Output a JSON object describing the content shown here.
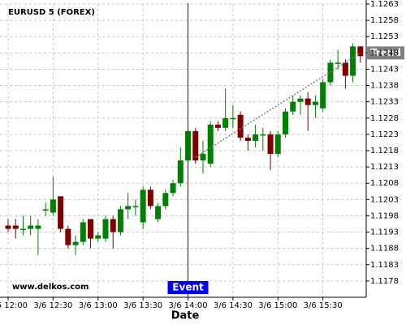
{
  "chart_data": {
    "type": "candlestick",
    "title": "EURUSD 5 (FOREX)",
    "watermark": "www.delkos.com",
    "x_label": "Date",
    "categories": [
      "3/6 12:00",
      null,
      null,
      null,
      null,
      null,
      "3/6 12:30",
      null,
      null,
      null,
      null,
      null,
      "3/6 13:00",
      null,
      null,
      null,
      null,
      null,
      "3/6 13:30",
      null,
      null,
      null,
      null,
      null,
      "3/6 14:00",
      null,
      null,
      null,
      null,
      null,
      "3/6 14:30",
      null,
      null,
      null,
      null,
      null,
      "3/6 15:00",
      null,
      null,
      null,
      null,
      null,
      "3/6 15:30",
      null,
      null,
      null,
      null,
      null
    ],
    "open": [
      1.1195,
      1.1195,
      1.1194,
      1.1194,
      1.1194,
      1.12,
      1.1199,
      1.1204,
      1.1194,
      1.1189,
      1.119,
      1.1197,
      1.1191,
      1.1191,
      1.1197,
      1.1193,
      1.12,
      1.1201,
      1.1196,
      1.1206,
      1.1197,
      1.1201,
      1.1205,
      1.1208,
      1.1215,
      1.1224,
      1.1215,
      1.1214,
      1.1226,
      1.1225,
      1.1228,
      1.1229,
      1.1222,
      1.1221,
      1.1223,
      1.1223,
      1.1217,
      1.1223,
      1.123,
      1.1233,
      1.1234,
      1.1232,
      1.1231,
      1.1239,
      1.1245,
      1.1245,
      1.1241,
      1.125
    ],
    "high": [
      1.1197,
      1.1197,
      1.1198,
      1.1198,
      1.1197,
      1.1202,
      1.121,
      1.1204,
      1.1195,
      1.1192,
      1.1197,
      1.1197,
      1.1193,
      1.1198,
      1.1198,
      1.1201,
      1.1205,
      1.1203,
      1.1207,
      1.1207,
      1.1202,
      1.1206,
      1.1209,
      1.1219,
      1.1225,
      1.1225,
      1.1221,
      1.1227,
      1.1227,
      1.1237,
      1.1232,
      1.123,
      1.1223,
      1.1226,
      1.1225,
      1.1224,
      1.1224,
      1.1231,
      1.1235,
      1.1235,
      1.1236,
      1.1235,
      1.124,
      1.1246,
      1.1249,
      1.1246,
      1.1251,
      1.125
    ],
    "low": [
      1.1193,
      1.1191,
      1.1192,
      1.1192,
      1.1186,
      1.1198,
      1.1198,
      1.1193,
      1.1188,
      1.1186,
      1.1189,
      1.1188,
      1.119,
      1.119,
      1.1188,
      1.1192,
      1.1197,
      1.1198,
      1.1194,
      1.12,
      1.1196,
      1.12,
      1.1204,
      1.1207,
      1.1214,
      1.1214,
      1.1211,
      1.1213,
      1.1224,
      1.1224,
      1.1225,
      1.1221,
      1.1218,
      1.1219,
      1.1218,
      1.1212,
      1.1216,
      1.1222,
      1.1229,
      1.1229,
      1.1224,
      1.1228,
      1.123,
      1.1238,
      1.1243,
      1.1237,
      1.1239,
      1.1245
    ],
    "close": [
      1.1194,
      1.1194,
      1.1194,
      1.1195,
      1.1195,
      1.12,
      1.1203,
      1.1194,
      1.1189,
      1.119,
      1.1196,
      1.1191,
      1.1192,
      1.1197,
      1.1193,
      1.12,
      1.1201,
      1.1201,
      1.1206,
      1.1201,
      1.1201,
      1.1205,
      1.1208,
      1.1215,
      1.1224,
      1.1215,
      1.1217,
      1.1226,
      1.1225,
      1.1228,
      1.1228,
      1.1222,
      1.1221,
      1.1223,
      1.1223,
      1.1217,
      1.1223,
      1.123,
      1.1233,
      1.1234,
      1.1232,
      1.1233,
      1.1239,
      1.1245,
      1.1245,
      1.1241,
      1.125,
      1.1247
    ],
    "up_color": "#008000",
    "down_color": "#800000",
    "ylim": [
      1.1173,
      1.1263
    ],
    "yticks": [
      1.1178,
      1.1183,
      1.1188,
      1.1193,
      1.1198,
      1.1203,
      1.1208,
      1.1213,
      1.1218,
      1.1223,
      1.1228,
      1.1233,
      1.1238,
      1.1243,
      1.1248,
      1.1253,
      1.1258,
      1.1263
    ],
    "grid": true,
    "event": {
      "label": "Event",
      "x": 24,
      "color": "#0000ff"
    },
    "trend": {
      "label": "Trend",
      "x": [
        25,
        47
      ],
      "values": [
        1.1216,
        1.1248
      ],
      "color": "#808080"
    }
  }
}
